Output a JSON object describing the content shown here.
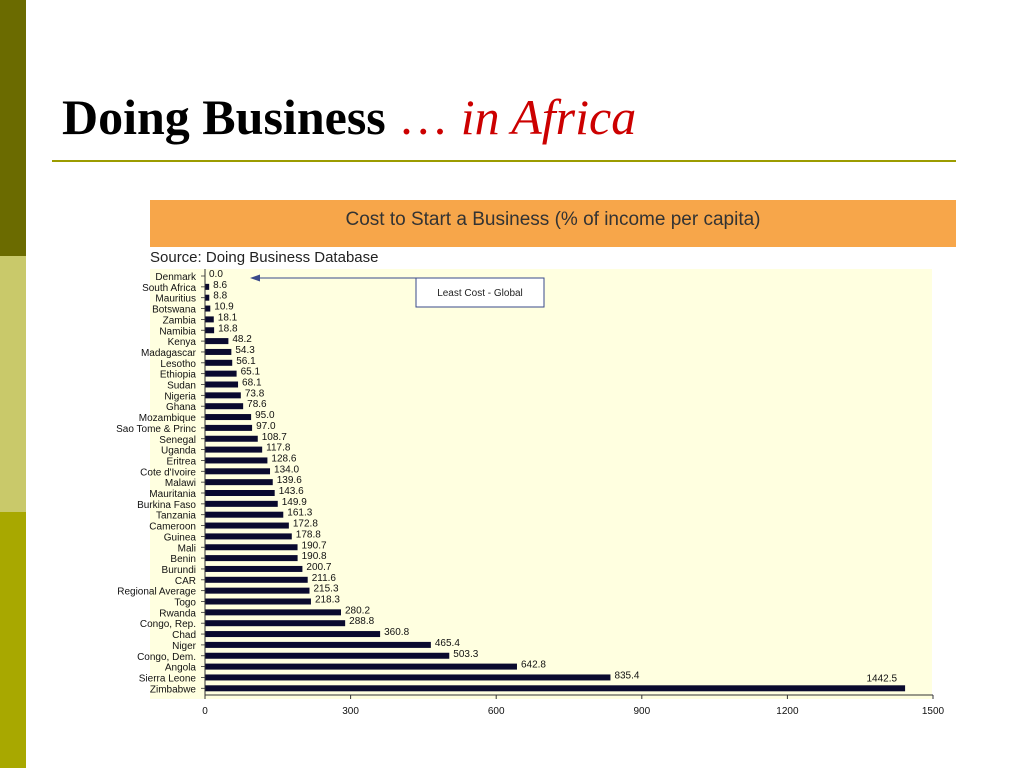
{
  "slide": {
    "title_main": "Doing Business",
    "title_ellipsis": "…",
    "title_accent": "in Africa"
  },
  "chart_data": {
    "type": "bar",
    "orientation": "horizontal",
    "title": "Cost to Start a Business (% of income per capita)",
    "subtitle": "Source: Doing Business Database",
    "annotation": "Least Cost - Global",
    "categories": [
      "Denmark",
      "South Africa",
      "Mauritius",
      "Botswana",
      "Zambia",
      "Namibia",
      "Kenya",
      "Madagascar",
      "Lesotho",
      "Ethiopia",
      "Sudan",
      "Nigeria",
      "Ghana",
      "Mozambique",
      "Sao Tome & Princ",
      "Senegal",
      "Uganda",
      "Eritrea",
      "Cote d'Ivoire",
      "Malawi",
      "Mauritania",
      "Burkina Faso",
      "Tanzania",
      "Cameroon",
      "Guinea",
      "Mali",
      "Benin",
      "Burundi",
      "CAR",
      "Regional Average",
      "Togo",
      "Rwanda",
      "Congo, Rep.",
      "Chad",
      "Niger",
      "Congo, Dem.",
      "Angola",
      "Sierra Leone",
      "Zimbabwe"
    ],
    "values": [
      0.0,
      8.6,
      8.8,
      10.9,
      18.1,
      18.8,
      48.2,
      54.3,
      56.1,
      65.1,
      68.1,
      73.8,
      78.6,
      95.0,
      97.0,
      108.7,
      117.8,
      128.6,
      134.0,
      139.6,
      143.6,
      149.9,
      161.3,
      172.8,
      178.8,
      190.7,
      190.8,
      200.7,
      211.6,
      215.3,
      218.3,
      280.2,
      288.8,
      360.8,
      465.4,
      503.3,
      642.8,
      835.4,
      1442.5
    ],
    "value_labels": [
      "0.0",
      "8.6",
      "8.8",
      "10.9",
      "18.1",
      "18.8",
      "48.2",
      "54.3",
      "56.1",
      "65.1",
      "68.1",
      "73.8",
      "78.6",
      "95.0",
      "97.0",
      "108.7",
      "117.8",
      "128.6",
      "134.0",
      "139.6",
      "143.6",
      "149.9",
      "161.3",
      "172.8",
      "178.8",
      "190.7",
      "190.8",
      "200.7",
      "211.6",
      "215.3",
      "218.3",
      "280.2",
      "288.8",
      "360.8",
      "465.4",
      "503.3",
      "642.8",
      "835.4",
      "1442.5"
    ],
    "xlim": [
      0,
      1500
    ],
    "xticks": [
      "0",
      "300",
      "600",
      "900",
      "1200",
      "1500"
    ],
    "grid": false,
    "colors": {
      "bar": "#0a0a2e",
      "plot_bg": "#ffffe0",
      "header_bg": "#f7a64a",
      "arrow": "#3a4a8a"
    }
  }
}
